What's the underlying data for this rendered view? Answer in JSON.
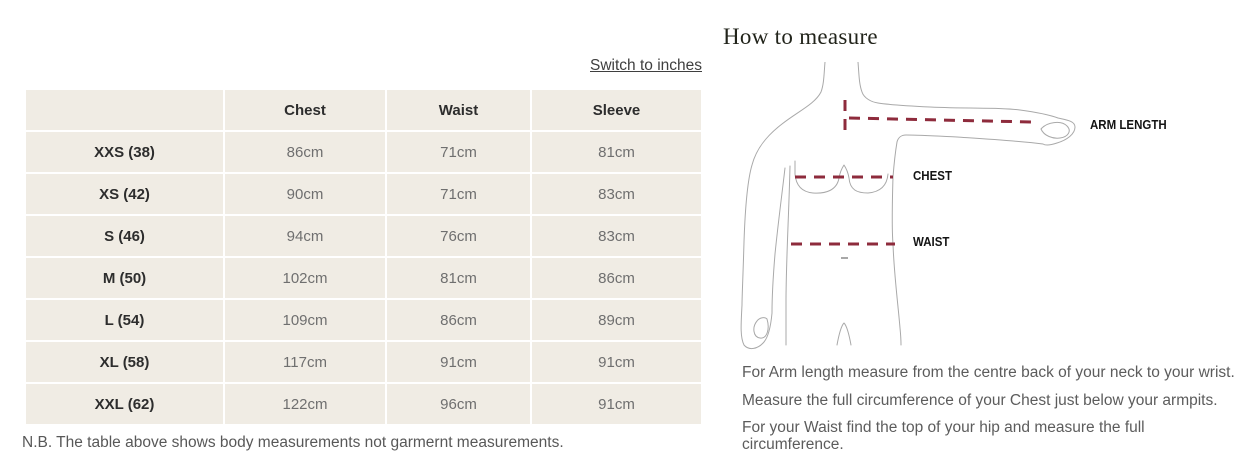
{
  "colors": {
    "dash": "#8e2b3c",
    "figure_outline": "#a9a9a9",
    "table_cell_bg": "#f0ece4",
    "link_text": "#3f3f3f",
    "value_text": "#6f6f6f",
    "heading_text": "#2d2d2d",
    "note_text": "#585858",
    "title_text": "#22241b",
    "label_text": "#141414"
  },
  "size_table": {
    "switch_link": "Switch to inches",
    "columns": [
      "Chest",
      "Waist",
      "Sleeve"
    ],
    "rows": [
      {
        "label": "XXS (38)",
        "chest": "86cm",
        "waist": "71cm",
        "sleeve": "81cm"
      },
      {
        "label": "XS (42)",
        "chest": "90cm",
        "waist": "71cm",
        "sleeve": "83cm"
      },
      {
        "label": "S (46)",
        "chest": "94cm",
        "waist": "76cm",
        "sleeve": "83cm"
      },
      {
        "label": "M (50)",
        "chest": "102cm",
        "waist": "81cm",
        "sleeve": "86cm"
      },
      {
        "label": "L (54)",
        "chest": "109cm",
        "waist": "86cm",
        "sleeve": "89cm"
      },
      {
        "label": "XL (58)",
        "chest": "117cm",
        "waist": "91cm",
        "sleeve": "91cm"
      },
      {
        "label": "XXL (62)",
        "chest": "122cm",
        "waist": "96cm",
        "sleeve": "91cm"
      }
    ],
    "note": "N.B. The table above shows body measurements not garmernt measurements."
  },
  "measure_guide": {
    "title": "How to measure",
    "labels": {
      "arm": "ARM LENGTH",
      "chest": "CHEST",
      "waist": "WAIST"
    },
    "instructions": [
      "For Arm length measure from the centre back of your neck to your wrist.",
      "Measure the full circumference of your Chest just below your armpits.",
      "For your Waist find the top of your hip and measure the full circumference."
    ]
  }
}
